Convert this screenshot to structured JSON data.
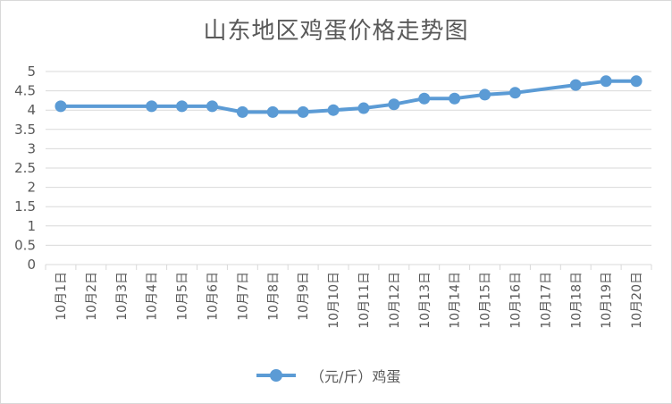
{
  "chart_data": {
    "type": "line",
    "title": "山东地区鸡蛋价格走势图",
    "categories": [
      "10月1日",
      "10月2日",
      "10月3日",
      "10月4日",
      "10月5日",
      "10月6日",
      "10月7日",
      "10月8日",
      "10月9日",
      "10月10日",
      "10月11日",
      "10月12日",
      "10月13日",
      "10月14日",
      "10月15日",
      "10月16日",
      "10月17日",
      "10月18日",
      "10月19日",
      "10月20日"
    ],
    "yticks": [
      "0",
      "0.5",
      "1",
      "1.5",
      "2",
      "2.5",
      "3",
      "3.5",
      "4",
      "4.5",
      "5"
    ],
    "ylim": [
      0,
      5
    ],
    "grid": true,
    "legend_position": "bottom",
    "series": [
      {
        "name": "（元/斤）鸡蛋",
        "color": "#5b9bd5",
        "values": [
          4.1,
          null,
          null,
          4.1,
          4.1,
          4.1,
          3.95,
          3.95,
          3.95,
          4.0,
          4.05,
          4.15,
          4.3,
          4.3,
          4.4,
          4.45,
          null,
          4.65,
          4.75,
          4.75
        ]
      }
    ]
  }
}
